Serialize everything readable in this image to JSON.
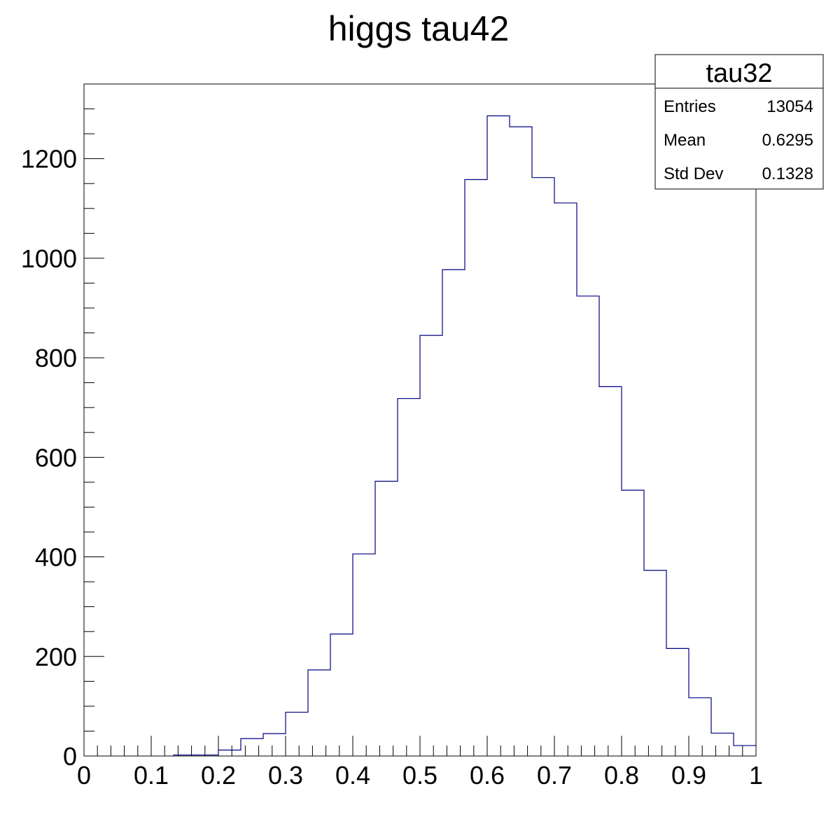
{
  "chart_data": {
    "type": "bar",
    "histogram": true,
    "title": "higgs tau42",
    "xlabel": "",
    "ylabel": "",
    "xlim": [
      0,
      1
    ],
    "ylim": [
      0,
      1350
    ],
    "bin_width": 0.0333,
    "x_bin_edges_start": 0,
    "n_bins": 30,
    "values": [
      0,
      0,
      0,
      0,
      2,
      2,
      12,
      35,
      45,
      88,
      173,
      245,
      406,
      552,
      718,
      845,
      977,
      1158,
      1286,
      1264,
      1162,
      1111,
      924,
      742,
      534,
      373,
      216,
      117,
      46,
      21
    ],
    "x_ticks": [
      "0",
      "0.1",
      "0.2",
      "0.3",
      "0.4",
      "0.5",
      "0.6",
      "0.7",
      "0.8",
      "0.9",
      "1"
    ],
    "y_ticks": [
      "0",
      "200",
      "400",
      "600",
      "800",
      "1000",
      "1200"
    ],
    "line_color": "#000080",
    "grid": false,
    "legend": "top-right",
    "stats_box": {
      "title": "tau32",
      "rows": [
        {
          "label": "Entries",
          "value": "13054"
        },
        {
          "label": "Mean",
          "value": "0.6295"
        },
        {
          "label": "Std Dev",
          "value": "0.1328"
        }
      ]
    }
  }
}
